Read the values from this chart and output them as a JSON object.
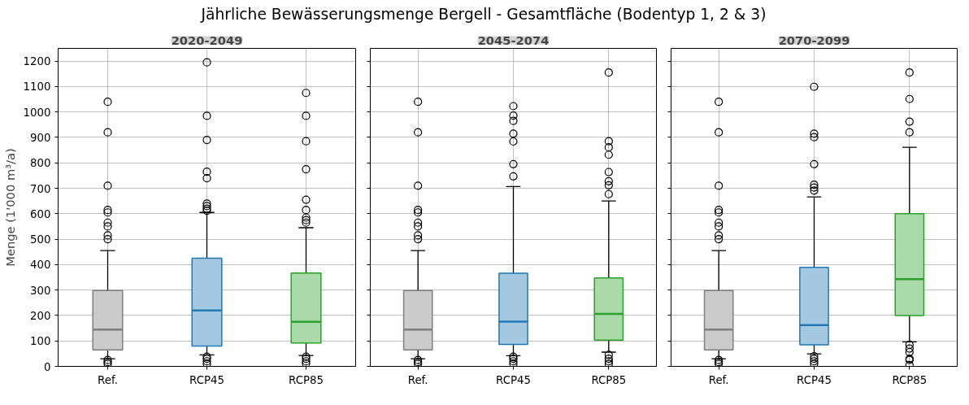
{
  "chart_data": [
    {
      "type": "box",
      "title": "2020-2049",
      "annotations": [
        "Jährliche Bewässerungsmenge Bergell - Gesamtfläche (Bodentyp 1, 2 & 3)"
      ],
      "ylabel": "Menge (1'000 m³/a)",
      "categories": [
        "Ref.",
        "RCP45",
        "RCP85"
      ],
      "colors": [
        "#7f7f7f",
        "#1f77b4",
        "#2ca02c"
      ],
      "ylim": [
        0,
        1250
      ],
      "yticks": [
        0,
        100,
        200,
        300,
        400,
        500,
        600,
        700,
        800,
        900,
        1000,
        1100,
        1200
      ],
      "grid": true,
      "boxes": [
        {
          "low": 30,
          "q1": 65,
          "median": 145,
          "q3": 298,
          "high": 455,
          "outliers": [
            10,
            17,
            25,
            500,
            515,
            550,
            565,
            605,
            615,
            710,
            920,
            1040
          ]
        },
        {
          "low": 45,
          "q1": 80,
          "median": 220,
          "q3": 425,
          "high": 605,
          "outliers": [
            10,
            20,
            30,
            38,
            612,
            620,
            630,
            640,
            740,
            765,
            890,
            985,
            1195
          ]
        },
        {
          "low": 43,
          "q1": 92,
          "median": 175,
          "q3": 367,
          "high": 545,
          "outliers": [
            12,
            20,
            30,
            38,
            565,
            575,
            585,
            615,
            655,
            775,
            885,
            985,
            1075
          ]
        }
      ]
    },
    {
      "type": "box",
      "title": "2045-2074",
      "categories": [
        "Ref.",
        "RCP45",
        "RCP85"
      ],
      "colors": [
        "#7f7f7f",
        "#1f77b4",
        "#2ca02c"
      ],
      "ylim": [
        0,
        1250
      ],
      "yticks": [
        0,
        100,
        200,
        300,
        400,
        500,
        600,
        700,
        800,
        900,
        1000,
        1100,
        1200
      ],
      "grid": true,
      "tick_labels": "x",
      "boxes": [
        {
          "low": 30,
          "q1": 65,
          "median": 145,
          "q3": 298,
          "high": 455,
          "outliers": [
            10,
            17,
            25,
            500,
            515,
            550,
            565,
            605,
            615,
            710,
            920,
            1040
          ]
        },
        {
          "low": 42,
          "q1": 86,
          "median": 176,
          "q3": 366,
          "high": 707,
          "outliers": [
            10,
            20,
            30,
            38,
            747,
            795,
            884,
            915,
            965,
            986,
            1023
          ]
        },
        {
          "low": 56,
          "q1": 103,
          "median": 206,
          "q3": 348,
          "high": 650,
          "outliers": [
            10,
            20,
            30,
            45,
            677,
            712,
            728,
            764,
            832,
            861,
            885,
            1155
          ]
        }
      ]
    },
    {
      "type": "box",
      "title": "2070-2099",
      "categories": [
        "Ref.",
        "RCP45",
        "RCP85"
      ],
      "colors": [
        "#7f7f7f",
        "#1f77b4",
        "#2ca02c"
      ],
      "ylim": [
        0,
        1250
      ],
      "yticks": [
        0,
        100,
        200,
        300,
        400,
        500,
        600,
        700,
        800,
        900,
        1000,
        1100,
        1200
      ],
      "grid": true,
      "tick_labels": "x",
      "boxes": [
        {
          "low": 30,
          "q1": 65,
          "median": 145,
          "q3": 298,
          "high": 455,
          "outliers": [
            10,
            17,
            25,
            500,
            515,
            550,
            565,
            605,
            615,
            710,
            920,
            1040
          ]
        },
        {
          "low": 49,
          "q1": 85,
          "median": 162,
          "q3": 389,
          "high": 666,
          "outliers": [
            10,
            20,
            30,
            40,
            691,
            703,
            714,
            795,
            901,
            915,
            1099
          ]
        },
        {
          "low": 96,
          "q1": 200,
          "median": 343,
          "q3": 600,
          "high": 861,
          "outliers": [
            5,
            25,
            30,
            56,
            70,
            85,
            920,
            962,
            1051,
            1155
          ]
        }
      ]
    }
  ]
}
